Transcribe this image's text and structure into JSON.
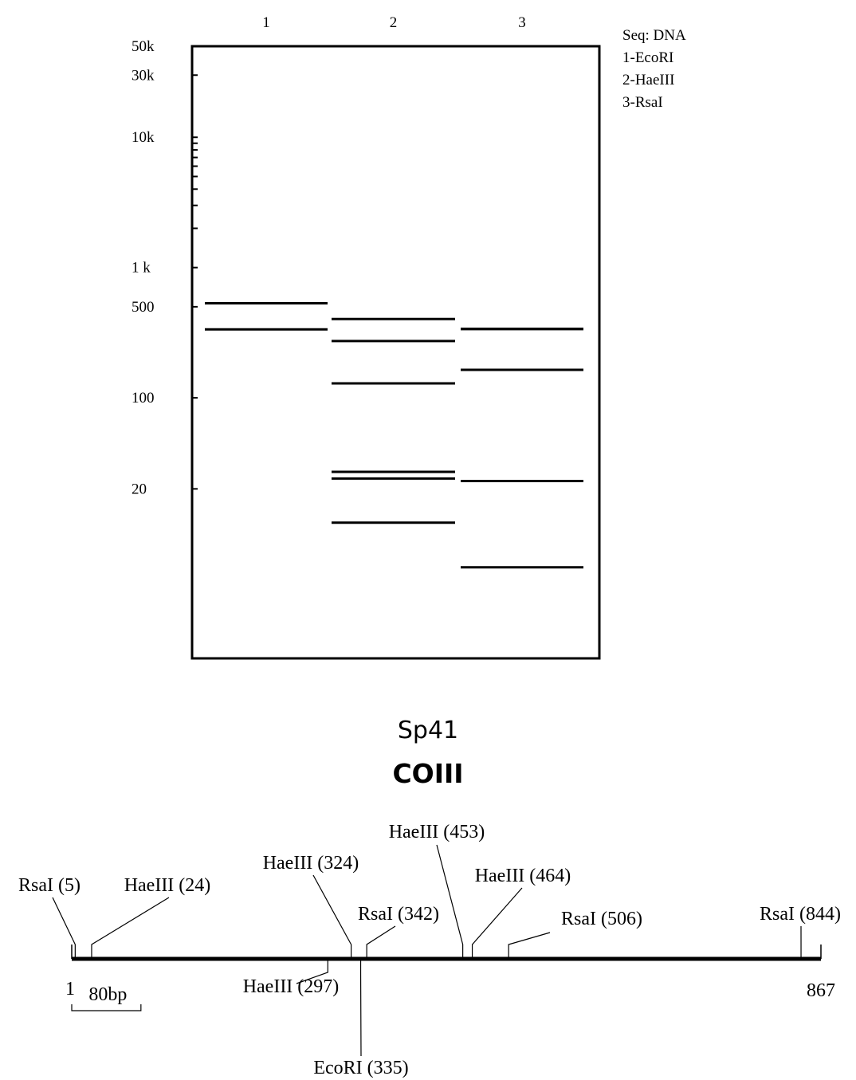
{
  "gel": {
    "lanes": [
      {
        "label": "1",
        "bands": [
          532,
          335
        ]
      },
      {
        "label": "2",
        "bands": [
          403,
          273,
          129,
          27,
          24,
          11
        ]
      },
      {
        "label": "3",
        "bands": [
          338,
          337,
          164,
          23,
          5
        ]
      }
    ],
    "log_scale": true,
    "ylim": [
      1,
      50000
    ],
    "ticks": [
      {
        "value": 50000,
        "label": "50k"
      },
      {
        "value": 30000,
        "label": "30k"
      },
      {
        "value": 10000,
        "label": "10k"
      },
      {
        "value": 1000,
        "label": "1 k"
      },
      500,
      100,
      20
    ],
    "minor_ticks": [
      9000,
      8000,
      7000,
      6000,
      5000,
      4000,
      3000,
      2000
    ],
    "legend": {
      "title": "Seq: DNA",
      "items": [
        "1-EcoRI",
        "2-HaeIII",
        "3-RsaI"
      ]
    }
  },
  "map": {
    "title": "Sp41",
    "gene": "COIII",
    "start": 1,
    "end": 867,
    "scale_bar": {
      "label": "80bp",
      "length": 80
    },
    "sites": [
      {
        "label": "RsaI (5)",
        "position": 5
      },
      {
        "label": "HaeIII (24)",
        "position": 24
      },
      {
        "label": "HaeIII (324)",
        "position": 324
      },
      {
        "label": "RsaI (342)",
        "position": 342
      },
      {
        "label": "HaeIII (453)",
        "position": 453
      },
      {
        "label": "HaeIII (464)",
        "position": 464
      },
      {
        "label": "RsaI (506)",
        "position": 506
      },
      {
        "label": "RsaI (844)",
        "position": 844
      },
      {
        "label": "HaeIII (297)",
        "position": 297
      },
      {
        "label": "EcoRI (335)",
        "position": 335
      }
    ]
  }
}
